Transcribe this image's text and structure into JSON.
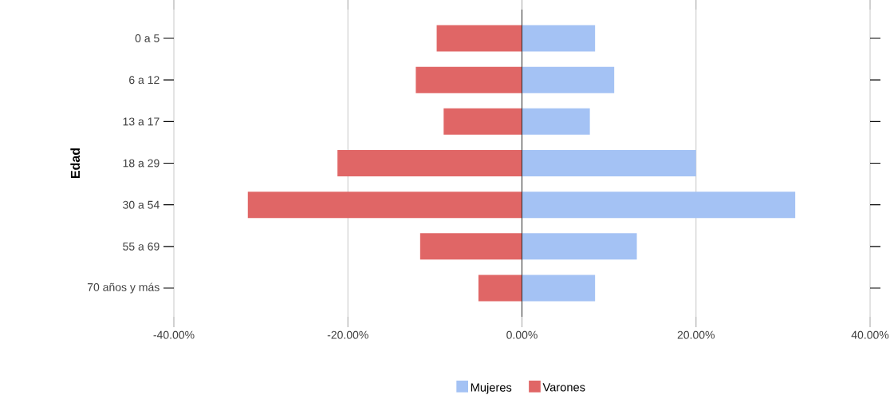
{
  "chart_data": {
    "type": "bar",
    "orientation": "horizontal",
    "stacked": true,
    "ylabel": "Edad",
    "categories": [
      "0 a 5",
      "6 a 12",
      "13 a 17",
      "18 a 29",
      "30 a 54",
      "55 a 69",
      "70 años y más"
    ],
    "series": [
      {
        "name": "Mujeres",
        "color": "#a4c2f4",
        "values": [
          8.4,
          10.6,
          7.8,
          20.0,
          31.4,
          13.2,
          8.4
        ]
      },
      {
        "name": "Varones",
        "color": "#e06666",
        "values": [
          -9.8,
          -12.2,
          -9.0,
          -21.2,
          -31.5,
          -11.7,
          -5.0
        ]
      }
    ],
    "xlim": [
      -40,
      40
    ],
    "xticks": [
      {
        "value": -40,
        "label": "-40.00%"
      },
      {
        "value": -20,
        "label": "-20.00%"
      },
      {
        "value": 0,
        "label": "0.00%"
      },
      {
        "value": 20,
        "label": "20.00%"
      },
      {
        "value": 40,
        "label": "40.00%"
      }
    ],
    "grid": "x",
    "legend": "bottom"
  }
}
